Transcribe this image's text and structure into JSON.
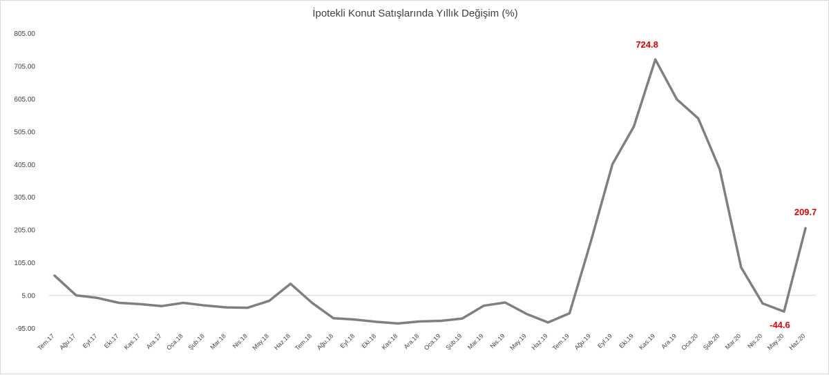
{
  "chart_data": {
    "type": "line",
    "title": "İpotekli Konut Satışlarında Yıllık Değişim (%)",
    "xlabel": "",
    "ylabel": "",
    "ylim": [
      -95,
      805
    ],
    "yticks": [
      "805.00",
      "705.00",
      "605.00",
      "505.00",
      "405.00",
      "305.00",
      "205.00",
      "105.00",
      "5.00",
      "-95.00"
    ],
    "ytick_values": [
      805,
      705,
      605,
      505,
      405,
      305,
      205,
      105,
      5,
      -95
    ],
    "grid": false,
    "legend": "none",
    "line_color": "#7f7f7f",
    "label_color": "#e00000",
    "categories": [
      "Tem.17",
      "Ağu.17",
      "Eyl.17",
      "Eki.17",
      "Kas.17",
      "Ara.17",
      "Oca.18",
      "Şub.18",
      "Mar.18",
      "Nis.18",
      "May.18",
      "Haz.18",
      "Tem.18",
      "Ağu.18",
      "Eyl.18",
      "Eki.18",
      "Kas.18",
      "Ara.18",
      "Oca.19",
      "Şub.19",
      "Mar.19",
      "Nis.19",
      "May.19",
      "Haz.19",
      "Tem.19",
      "Ağu.19",
      "Eyl.19",
      "Eki.19",
      "Kas.19",
      "Ara.19",
      "Oca.20",
      "Şub.20",
      "Mar.20",
      "Nis.20",
      "May.20",
      "Haz.20"
    ],
    "series": [
      {
        "values": [
          65,
          5,
          -3,
          -18,
          -22,
          -28,
          -18,
          -26,
          -32,
          -33,
          -12,
          40,
          -18,
          -65,
          -69,
          -76,
          -81,
          -75,
          -73,
          -66,
          -27,
          -17,
          -52,
          -78,
          -50,
          170,
          405,
          520,
          724.8,
          603,
          545,
          390,
          90,
          -20,
          -44.6,
          209.7
        ]
      }
    ],
    "annotations": [
      {
        "category": "Kas.19",
        "text": "724.8"
      },
      {
        "category": "May.20",
        "text": "-44.6"
      },
      {
        "category": "Haz.20",
        "text": "209.7"
      }
    ]
  }
}
